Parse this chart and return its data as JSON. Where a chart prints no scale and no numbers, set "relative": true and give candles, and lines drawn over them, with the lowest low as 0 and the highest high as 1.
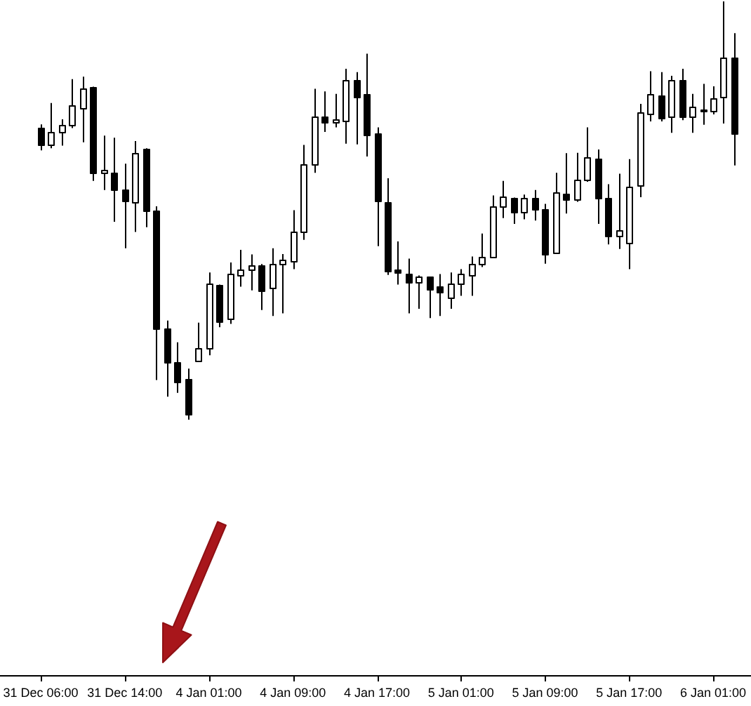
{
  "chart_data": {
    "type": "candlestick",
    "relative": true,
    "color": "#000000",
    "categories": [
      "31 Dec 06:00",
      null,
      null,
      null,
      null,
      null,
      null,
      null,
      "31 Dec 14:00",
      null,
      null,
      null,
      null,
      null,
      null,
      null,
      "4 Jan 01:00",
      null,
      null,
      null,
      null,
      null,
      null,
      null,
      "4 Jan 09:00",
      null,
      null,
      null,
      null,
      null,
      null,
      null,
      "4 Jan 17:00",
      null,
      null,
      null,
      null,
      null,
      null,
      null,
      "5 Jan 01:00",
      null,
      null,
      null,
      null,
      null,
      null,
      null,
      "5 Jan 09:00",
      null,
      null,
      null,
      null,
      null,
      null,
      null,
      "5 Jan 17:00",
      null,
      null,
      null,
      null,
      null,
      null,
      null,
      "6 Jan 01:00",
      null,
      null
    ],
    "ohlc": [
      [
        0.699,
        0.706,
        0.644,
        0.658
      ],
      [
        0.658,
        0.757,
        0.649,
        0.688
      ],
      [
        0.688,
        0.718,
        0.655,
        0.705
      ],
      [
        0.705,
        0.814,
        0.697,
        0.753
      ],
      [
        0.745,
        0.82,
        0.663,
        0.792
      ],
      [
        0.794,
        0.796,
        0.571,
        0.591
      ],
      [
        0.589,
        0.679,
        0.549,
        0.596
      ],
      [
        0.591,
        0.674,
        0.473,
        0.551
      ],
      [
        0.551,
        0.612,
        0.41,
        0.525
      ],
      [
        0.521,
        0.666,
        0.449,
        0.638
      ],
      [
        0.646,
        0.649,
        0.46,
        0.499
      ],
      [
        0.499,
        0.51,
        0.095,
        0.217
      ],
      [
        0.217,
        0.237,
        0.055,
        0.139
      ],
      [
        0.137,
        0.185,
        0.064,
        0.092
      ],
      [
        0.098,
        0.122,
        0,
        0.014
      ],
      [
        0.142,
        0.232,
        0.14,
        0.17
      ],
      [
        0.17,
        0.352,
        0.154,
        0.324
      ],
      [
        0.321,
        0.323,
        0.221,
        0.235
      ],
      [
        0.241,
        0.376,
        0.229,
        0.348
      ],
      [
        0.347,
        0.406,
        0.318,
        0.358
      ],
      [
        0.36,
        0.395,
        0.309,
        0.368
      ],
      [
        0.369,
        0.372,
        0.262,
        0.309
      ],
      [
        0.315,
        0.41,
        0.248,
        0.374
      ],
      [
        0.371,
        0.396,
        0.254,
        0.382
      ],
      [
        0.38,
        0.501,
        0.36,
        0.451
      ],
      [
        0.451,
        0.657,
        0.43,
        0.612
      ],
      [
        0.612,
        0.791,
        0.59,
        0.724
      ],
      [
        0.725,
        0.785,
        0.688,
        0.713
      ],
      [
        0.713,
        0.779,
        0.699,
        0.719
      ],
      [
        0.714,
        0.839,
        0.66,
        0.813
      ],
      [
        0.813,
        0.831,
        0.658,
        0.772
      ],
      [
        0.779,
        0.875,
        0.629,
        0.68
      ],
      [
        0.683,
        0.699,
        0.415,
        0.523
      ],
      [
        0.521,
        0.577,
        0.346,
        0.356
      ],
      [
        0.359,
        0.426,
        0.323,
        0.351
      ],
      [
        0.348,
        0.385,
        0.254,
        0.329
      ],
      [
        0.329,
        0.345,
        0.265,
        0.341
      ],
      [
        0.341,
        0.341,
        0.243,
        0.313
      ],
      [
        0.318,
        0.348,
        0.248,
        0.304
      ],
      [
        0.293,
        0.352,
        0.265,
        0.324
      ],
      [
        0.324,
        0.36,
        0.296,
        0.348
      ],
      [
        0.346,
        0.39,
        0.296,
        0.374
      ],
      [
        0.373,
        0.445,
        0.365,
        0.388
      ],
      [
        0.388,
        0.536,
        0.388,
        0.51
      ],
      [
        0.51,
        0.571,
        0.482,
        0.535
      ],
      [
        0.531,
        0.531,
        0.468,
        0.496
      ],
      [
        0.496,
        0.538,
        0.479,
        0.529
      ],
      [
        0.529,
        0.549,
        0.476,
        0.505
      ],
      [
        0.505,
        0.516,
        0.373,
        0.396
      ],
      [
        0.399,
        0.59,
        0.399,
        0.545
      ],
      [
        0.541,
        0.637,
        0.493,
        0.527
      ],
      [
        0.527,
        0.638,
        0.521,
        0.575
      ],
      [
        0.573,
        0.699,
        0.569,
        0.629
      ],
      [
        0.625,
        0.646,
        0.468,
        0.53
      ],
      [
        0.529,
        0.563,
        0.419,
        0.438
      ],
      [
        0.441,
        0.588,
        0.408,
        0.454
      ],
      [
        0.423,
        0.623,
        0.36,
        0.558
      ],
      [
        0.56,
        0.755,
        0.532,
        0.735
      ],
      [
        0.73,
        0.833,
        0.713,
        0.779
      ],
      [
        0.775,
        0.831,
        0.713,
        0.722
      ],
      [
        0.724,
        0.822,
        0.686,
        0.813
      ],
      [
        0.813,
        0.839,
        0.716,
        0.724
      ],
      [
        0.725,
        0.779,
        0.686,
        0.748
      ],
      [
        0.743,
        0.803,
        0.705,
        0.737
      ],
      [
        0.737,
        0.797,
        0.73,
        0.768
      ],
      [
        0.772,
        1,
        0.708,
        0.866
      ],
      [
        0.866,
        0.924,
        0.608,
        0.685
      ]
    ]
  }
}
